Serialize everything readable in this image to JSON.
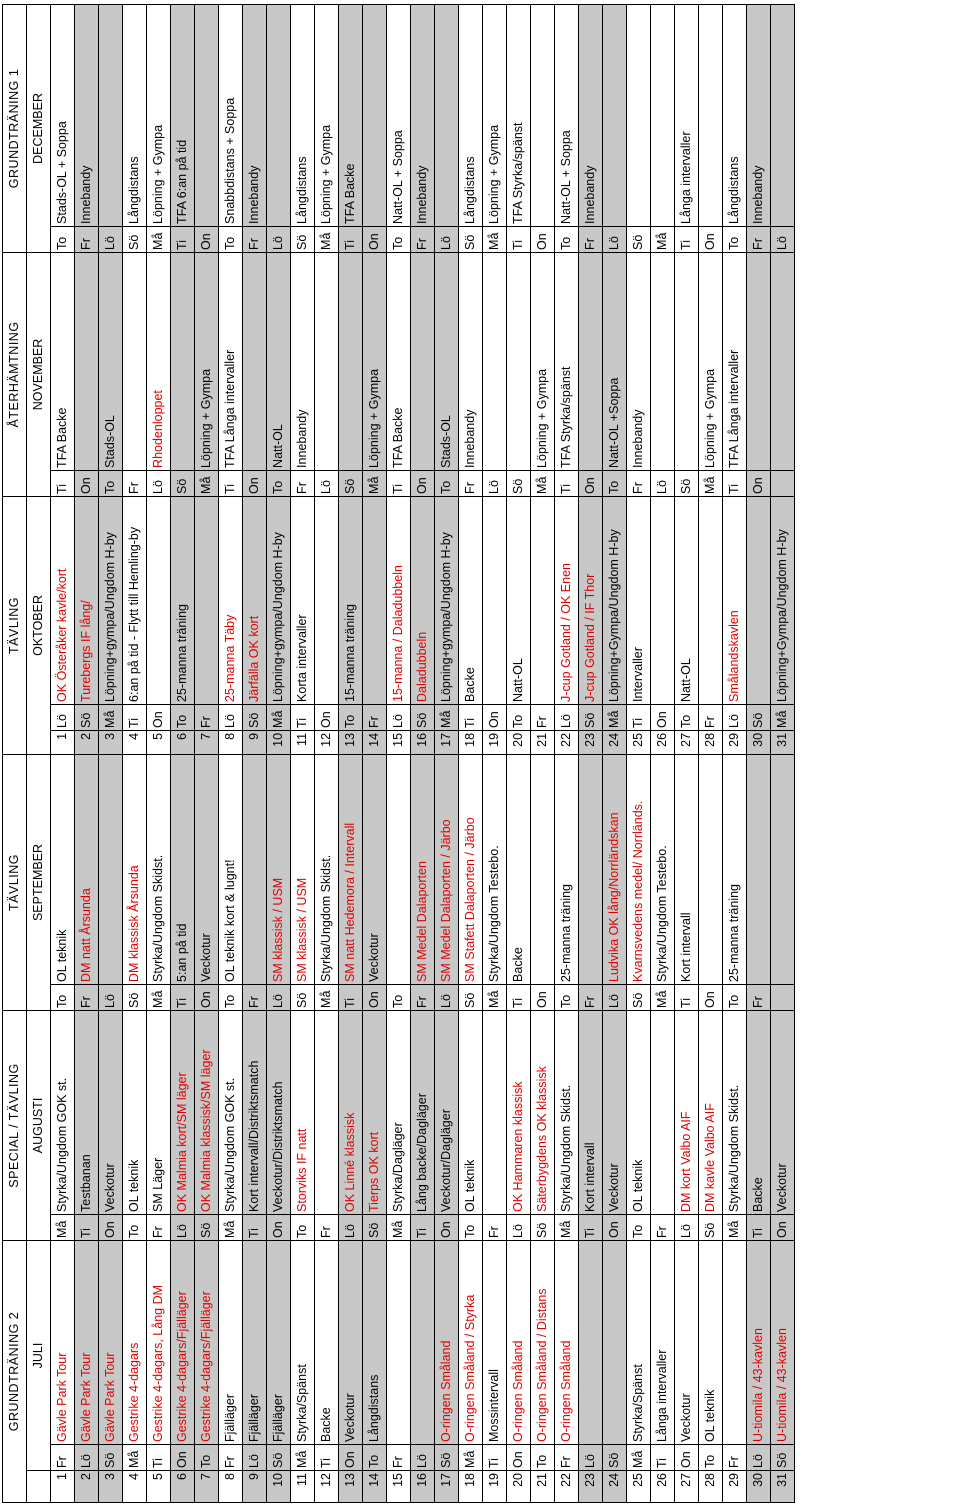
{
  "phases": [
    {
      "label": "GRUNDTRÄNING 2",
      "span": 3
    },
    {
      "label": "SPECIAL / TÄVLING",
      "span": 2
    },
    {
      "label": "TÄVLING",
      "span": 2
    },
    {
      "label": "TÄVLING",
      "span": 3
    },
    {
      "label": "ÅTERHÄMTNING",
      "span": 2
    },
    {
      "label": "GRUNDTRÄNING 1",
      "span": 2
    }
  ],
  "months": [
    {
      "label": "",
      "span": 1
    },
    {
      "label": "JULI",
      "span": 2
    },
    {
      "label": "AUGUSTI",
      "span": 2
    },
    {
      "label": "SEPTEMBER",
      "span": 2
    },
    {
      "label": "OKTOBER",
      "span": 3
    },
    {
      "label": "NOVEMBER",
      "span": 2
    },
    {
      "label": "DECEMBER",
      "span": 2
    }
  ],
  "rows": [
    {
      "n": "1",
      "jd": "Fr",
      "jt": "Gävle Park Tour",
      "jr": true,
      "ad": "Må",
      "at": "Styrka/Ungdom GOK st.",
      "ar": false,
      "sd": "To",
      "st": "OL teknik",
      "sr": false,
      "on": "1",
      "od": "Lö",
      "ot": "OK Österåker kavle/kort",
      "or": true,
      "nd": "Ti",
      "nt": "TFA Backe",
      "nr": false,
      "dd": "To",
      "dt": "Stads-OL + Soppa",
      "dr": false,
      "g": false
    },
    {
      "n": "2",
      "jd": "Lö",
      "jt": "Gävle Park Tour",
      "jr": true,
      "ad": "Ti",
      "at": "Testbanan",
      "ar": false,
      "sd": "Fr",
      "st": "DM natt Årsunda",
      "sr": true,
      "on": "2",
      "od": "Sö",
      "ot": "Turebergs IF lång/",
      "or": true,
      "nd": "On",
      "nt": "",
      "nr": false,
      "dd": "Fr",
      "dt": "Innebandy",
      "dr": false,
      "g": true
    },
    {
      "n": "3",
      "jd": "Sö",
      "jt": "Gävle Park Tour",
      "jr": true,
      "ad": "On",
      "at": "Veckotur",
      "ar": false,
      "sd": "Lö",
      "st": "",
      "sr": false,
      "on": "3",
      "od": "Må",
      "ot": "Löpning+gympa/Ungdom H-by",
      "or": false,
      "nd": "To",
      "nt": "Stads-OL",
      "nr": false,
      "dd": "Lö",
      "dt": "",
      "dr": false,
      "g": true
    },
    {
      "n": "4",
      "jd": "Må",
      "jt": "Gestrike 4-dagars",
      "jr": true,
      "ad": "To",
      "at": "OL teknik",
      "ar": false,
      "sd": "Sö",
      "st": "DM klassisk Årsunda",
      "sr": true,
      "on": "4",
      "od": "Ti",
      "ot": "6:an på tid - Flytt till Hemling-by",
      "or": false,
      "nd": "Fr",
      "nt": "",
      "nr": false,
      "dd": "Sö",
      "dt": "Långdistans",
      "dr": false,
      "g": false
    },
    {
      "n": "5",
      "jd": "Ti",
      "jt": "Gestrike 4-dagars, Lång DM",
      "jr": true,
      "ad": "Fr",
      "at": "SM Läger",
      "ar": false,
      "sd": "Må",
      "st": "Styrka/Ungdom Skidst.",
      "sr": false,
      "on": "5",
      "od": "On",
      "ot": "",
      "or": false,
      "nd": "Lö",
      "nt": "Rhodenloppet",
      "nr": true,
      "dd": "Må",
      "dt": "Löpning + Gympa",
      "dr": false,
      "g": false
    },
    {
      "n": "6",
      "jd": "On",
      "jt": "Gestrike 4-dagars/Fjälläger",
      "jr": true,
      "ad": "Lö",
      "at": "OK Malmia kort/SM läger",
      "ar": true,
      "sd": "Ti",
      "st": "5:an på tid",
      "sr": false,
      "on": "6",
      "od": "To",
      "ot": "25-manna träning",
      "or": false,
      "nd": "Sö",
      "nt": "",
      "nr": false,
      "dd": "Ti",
      "dt": "TFA 6:an på tid",
      "dr": false,
      "g": true
    },
    {
      "n": "7",
      "jd": "To",
      "jt": "Gestrike 4-dagars/Fjälläger",
      "jr": true,
      "ad": "Sö",
      "at": "OK Malmia klassisk/SM läger",
      "ar": true,
      "sd": "On",
      "st": "Veckotur",
      "sr": false,
      "on": "7",
      "od": "Fr",
      "ot": "",
      "or": false,
      "nd": "Må",
      "nt": "Löpning + Gympa",
      "nr": false,
      "dd": "On",
      "dt": "",
      "dr": false,
      "g": true
    },
    {
      "n": "8",
      "jd": "Fr",
      "jt": "Fjälläger",
      "jr": false,
      "ad": "Må",
      "at": "Styrka/Ungdom GOK st.",
      "ar": false,
      "sd": "To",
      "st": "OL teknik kort & lugnt!",
      "sr": false,
      "on": "8",
      "od": "Lö",
      "ot": "25-manna Täby",
      "or": true,
      "nd": "Ti",
      "nt": "TFA Långa intervaller",
      "nr": false,
      "dd": "To",
      "dt": "Snabbdistans + Soppa",
      "dr": false,
      "g": false
    },
    {
      "n": "9",
      "jd": "Lö",
      "jt": "Fjälläger",
      "jr": false,
      "ad": "Ti",
      "at": "Kort intervall/Distriktsmatch",
      "ar": false,
      "sd": "Fr",
      "st": "",
      "sr": false,
      "on": "9",
      "od": "Sö",
      "ot": "Järfälla OK kort",
      "or": true,
      "nd": "On",
      "nt": "",
      "nr": false,
      "dd": "Fr",
      "dt": "Innebandy",
      "dr": false,
      "g": true
    },
    {
      "n": "10",
      "jd": "Sö",
      "jt": "Fjälläger",
      "jr": false,
      "ad": "On",
      "at": "Veckotur/Distriktsmatch",
      "ar": false,
      "sd": "Lö",
      "st": "SM klassisk / USM",
      "sr": true,
      "on": "10",
      "od": "Må",
      "ot": "Löpning+gympa/Ungdom H-by",
      "or": false,
      "nd": "To",
      "nt": "Natt-OL",
      "nr": false,
      "dd": "Lö",
      "dt": "",
      "dr": false,
      "g": true
    },
    {
      "n": "11",
      "jd": "Må",
      "jt": "Styrka/Spänst",
      "jr": false,
      "ad": "To",
      "at": "Storviks IF natt",
      "ar": true,
      "sd": "Sö",
      "st": "SM klassisk / USM",
      "sr": true,
      "on": "11",
      "od": "Ti",
      "ot": "Korta intervaller",
      "or": false,
      "nd": "Fr",
      "nt": "Innebandy",
      "nr": false,
      "dd": "Sö",
      "dt": "Långdistans",
      "dr": false,
      "g": false
    },
    {
      "n": "12",
      "jd": "Ti",
      "jt": "Backe",
      "jr": false,
      "ad": "Fr",
      "at": "",
      "ar": false,
      "sd": "Må",
      "st": "Styrka/Ungdom Skidst.",
      "sr": false,
      "on": "12",
      "od": "On",
      "ot": "",
      "or": false,
      "nd": "Lö",
      "nt": "",
      "nr": false,
      "dd": "Må",
      "dt": "Löpning + Gympa",
      "dr": false,
      "g": false
    },
    {
      "n": "13",
      "jd": "On",
      "jt": "Veckotur",
      "jr": false,
      "ad": "Lö",
      "at": "OK Linné klassisk",
      "ar": true,
      "sd": "Ti",
      "st": "SM natt Hedemora / Intervall",
      "sr": true,
      "on": "13",
      "od": "To",
      "ot": "15-manna träning",
      "or": false,
      "nd": "Sö",
      "nt": "",
      "nr": false,
      "dd": "Ti",
      "dt": "TFA Backe",
      "dr": false,
      "g": true
    },
    {
      "n": "14",
      "jd": "To",
      "jt": "Långdistans",
      "jr": false,
      "ad": "Sö",
      "at": "Tierps OK kort",
      "ar": true,
      "sd": "On",
      "st": "Veckotur",
      "sr": false,
      "on": "14",
      "od": "Fr",
      "ot": "",
      "or": false,
      "nd": "Må",
      "nt": "Löpning + Gympa",
      "nr": false,
      "dd": "On",
      "dt": "",
      "dr": false,
      "g": true
    },
    {
      "n": "15",
      "jd": "Fr",
      "jt": "",
      "jr": false,
      "ad": "Må",
      "at": "Styrka/Dagläger",
      "ar": false,
      "sd": "To",
      "st": "",
      "sr": false,
      "on": "15",
      "od": "Lö",
      "ot": "15-manna / Daladubbeln",
      "or": true,
      "nd": "Ti",
      "nt": "TFA Backe",
      "nr": false,
      "dd": "To",
      "dt": "Natt-OL + Soppa",
      "dr": false,
      "g": false
    },
    {
      "n": "16",
      "jd": "Lö",
      "jt": "",
      "jr": false,
      "ad": "Ti",
      "at": "Lång backe/Dagläger",
      "ar": false,
      "sd": "Fr",
      "st": "SM Medel Dalaporten",
      "sr": true,
      "on": "16",
      "od": "Sö",
      "ot": "Daladubbeln",
      "or": true,
      "nd": "On",
      "nt": "",
      "nr": false,
      "dd": "Fr",
      "dt": "Innebandy",
      "dr": false,
      "g": true
    },
    {
      "n": "17",
      "jd": "Sö",
      "jt": "O-ringen Småland",
      "jr": true,
      "ad": "On",
      "at": "Veckotur/Dagläger",
      "ar": false,
      "sd": "Lö",
      "st": "SM Medel Dalaporten / Järbo",
      "sr": true,
      "on": "17",
      "od": "Må",
      "ot": "Löpning+gympa/Ungdom H-by",
      "or": false,
      "nd": "To",
      "nt": "Stads-OL",
      "nr": false,
      "dd": "Lö",
      "dt": "",
      "dr": false,
      "g": true
    },
    {
      "n": "18",
      "jd": "Må",
      "jt": "O-ringen Småland / Styrka",
      "jr": true,
      "ad": "To",
      "at": "OL teknik",
      "ar": false,
      "sd": "Sö",
      "st": "SM Stafett Dalaporten / Järbo",
      "sr": true,
      "on": "18",
      "od": "Ti",
      "ot": "Backe",
      "or": false,
      "nd": "Fr",
      "nt": "Innebandy",
      "nr": false,
      "dd": "Sö",
      "dt": "Långdistans",
      "dr": false,
      "g": false
    },
    {
      "n": "19",
      "jd": "Ti",
      "jt": "Mossintervall",
      "jr": false,
      "ad": "Fr",
      "at": "",
      "ar": false,
      "sd": "Må",
      "st": "Styrka/Ungdom Testebo.",
      "sr": false,
      "on": "19",
      "od": "On",
      "ot": "",
      "or": false,
      "nd": "Lö",
      "nt": "",
      "nr": false,
      "dd": "Må",
      "dt": "Löpning + Gympa",
      "dr": false,
      "g": false
    },
    {
      "n": "20",
      "jd": "On",
      "jt": "O-ringen Småland",
      "jr": true,
      "ad": "Lö",
      "at": "OK Hammaren klassisk",
      "ar": true,
      "sd": "Ti",
      "st": "Backe",
      "sr": false,
      "on": "20",
      "od": "To",
      "ot": "Natt-OL",
      "or": false,
      "nd": "Sö",
      "nt": "",
      "nr": false,
      "dd": "Ti",
      "dt": "TFA Styrka/spänst",
      "dr": false,
      "g": false
    },
    {
      "n": "21",
      "jd": "To",
      "jt": "O-ringen Småland / Distans",
      "jr": true,
      "ad": "Sö",
      "at": "Säterbygdens OK klassisk",
      "ar": true,
      "sd": "On",
      "st": "",
      "sr": false,
      "on": "21",
      "od": "Fr",
      "ot": "",
      "or": false,
      "nd": "Må",
      "nt": "Löpning + Gympa",
      "nr": false,
      "dd": "On",
      "dt": "",
      "dr": false,
      "g": false
    },
    {
      "n": "22",
      "jd": "Fr",
      "jt": "O-ringen Småland",
      "jr": true,
      "ad": "Må",
      "at": "Styrka/Ungdom Skidst.",
      "ar": false,
      "sd": "To",
      "st": "25-manna träning",
      "sr": false,
      "on": "22",
      "od": "Lö",
      "ot": "J-cup Gotland / OK Enen",
      "or": true,
      "nd": "Ti",
      "nt": "TFA Styrka/spänst",
      "nr": false,
      "dd": "To",
      "dt": "Natt-OL + Soppa",
      "dr": false,
      "g": false
    },
    {
      "n": "23",
      "jd": "Lö",
      "jt": "",
      "jr": false,
      "ad": "Ti",
      "at": "Kort intervall",
      "ar": false,
      "sd": "Fr",
      "st": "",
      "sr": false,
      "on": "23",
      "od": "Sö",
      "ot": "J-cup Gotland / IF Thor",
      "or": true,
      "nd": "On",
      "nt": "",
      "nr": false,
      "dd": "Fr",
      "dt": "Innebandy",
      "dr": false,
      "g": true
    },
    {
      "n": "24",
      "jd": "Sö",
      "jt": "",
      "jr": false,
      "ad": "On",
      "at": "Veckotur",
      "ar": false,
      "sd": "Lö",
      "st": "Ludvika OK lång/Norrländskan",
      "sr": true,
      "on": "24",
      "od": "Må",
      "ot": "Löpning+Gympa/Ungdom H-by",
      "or": false,
      "nd": "To",
      "nt": "Natt-OL +Soppa",
      "nr": false,
      "dd": "Lö",
      "dt": "",
      "dr": false,
      "g": true
    },
    {
      "n": "25",
      "jd": "Må",
      "jt": "Styrka/Spänst",
      "jr": false,
      "ad": "To",
      "at": "OL teknik",
      "ar": false,
      "sd": "Sö",
      "st": "Kvarnsvedens medel/ Norrländs.",
      "sr": true,
      "on": "25",
      "od": "Ti",
      "ot": "Intervaller",
      "or": false,
      "nd": "Fr",
      "nt": "Innebandy",
      "nr": false,
      "dd": "Sö",
      "dt": "",
      "dr": false,
      "g": false
    },
    {
      "n": "26",
      "jd": "Ti",
      "jt": "Långa intervaller",
      "jr": false,
      "ad": "Fr",
      "at": "",
      "ar": false,
      "sd": "Må",
      "st": "Styrka/Ungdom Testebo.",
      "sr": false,
      "on": "26",
      "od": "On",
      "ot": "",
      "or": false,
      "nd": "Lö",
      "nt": "",
      "nr": false,
      "dd": "Må",
      "dt": "",
      "dr": false,
      "g": false
    },
    {
      "n": "27",
      "jd": "On",
      "jt": "Veckotur",
      "jr": false,
      "ad": "Lö",
      "at": "DM kort Valbo AIF",
      "ar": true,
      "sd": "Ti",
      "st": "Kort intervall",
      "sr": false,
      "on": "27",
      "od": "To",
      "ot": "Natt-OL",
      "or": false,
      "nd": "Sö",
      "nt": "",
      "nr": false,
      "dd": "Ti",
      "dt": "Långa intervaller",
      "dr": false,
      "g": false
    },
    {
      "n": "28",
      "jd": "To",
      "jt": "OL teknik",
      "jr": false,
      "ad": "Sö",
      "at": "DM kavle Valbo AIF",
      "ar": true,
      "sd": "On",
      "st": "",
      "sr": false,
      "on": "28",
      "od": "Fr",
      "ot": "",
      "or": false,
      "nd": "Må",
      "nt": "Löpning + Gympa",
      "nr": false,
      "dd": "On",
      "dt": "",
      "dr": false,
      "g": false
    },
    {
      "n": "29",
      "jd": "Fr",
      "jt": "",
      "jr": false,
      "ad": "Må",
      "at": "Styrka/Ungdom Skidst.",
      "ar": false,
      "sd": "To",
      "st": "25-manna träning",
      "sr": false,
      "on": "29",
      "od": "Lö",
      "ot": "Smålandskavlen",
      "or": true,
      "nd": "Ti",
      "nt": "TFA Långa intervaller",
      "nr": false,
      "dd": "To",
      "dt": "Långdistans",
      "dr": false,
      "g": false
    },
    {
      "n": "30",
      "jd": "Lö",
      "jt": "U-tiomila / 43-kavlen",
      "jr": true,
      "ad": "Ti",
      "at": "Backe",
      "ar": false,
      "sd": "Fr",
      "st": "",
      "sr": false,
      "on": "30",
      "od": "Sö",
      "ot": "",
      "or": false,
      "nd": "On",
      "nt": "",
      "nr": false,
      "dd": "Fr",
      "dt": "Innebandy",
      "dr": false,
      "g": true
    },
    {
      "n": "31",
      "jd": "Sö",
      "jt": "U-tiomila / 43-kavlen",
      "jr": true,
      "ad": "On",
      "at": "Veckotur",
      "ar": false,
      "sd": "",
      "st": "",
      "sr": false,
      "on": "31",
      "od": "Må",
      "ot": "Löpning+Gympa/Ungdom H-by",
      "or": false,
      "nd": "",
      "nt": "",
      "nr": false,
      "dd": "Lö",
      "dt": "",
      "dr": false,
      "g": true
    }
  ]
}
